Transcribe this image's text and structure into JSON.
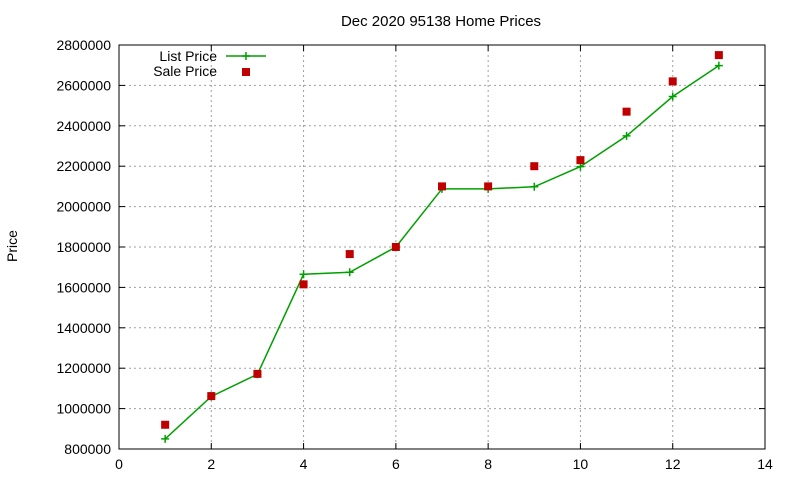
{
  "chart_data": {
    "type": "line",
    "title": "Dec 2020 95138 Home Prices",
    "xlabel": "",
    "ylabel": "Price",
    "xlim": [
      0,
      14
    ],
    "ylim": [
      800000,
      2800000
    ],
    "x_ticks": [
      0,
      2,
      4,
      6,
      8,
      10,
      12,
      14
    ],
    "y_ticks": [
      800000,
      1000000,
      1200000,
      1400000,
      1600000,
      1800000,
      2000000,
      2200000,
      2400000,
      2600000,
      2800000
    ],
    "grid": true,
    "legend_position": "top-left",
    "series": [
      {
        "name": "List Price",
        "style": "line-with-plus-markers",
        "color": "#00a000",
        "x": [
          1,
          2,
          3,
          4,
          5,
          6,
          7,
          8,
          9,
          10,
          11,
          12,
          13
        ],
        "y": [
          850000,
          1060000,
          1170000,
          1665000,
          1675000,
          1800000,
          2088000,
          2088000,
          2098000,
          2198000,
          2350000,
          2545000,
          2698000
        ]
      },
      {
        "name": "Sale Price",
        "style": "square-markers",
        "color": "#c00000",
        "x": [
          1,
          2,
          3,
          4,
          5,
          6,
          7,
          8,
          9,
          10,
          11,
          12,
          13
        ],
        "y": [
          920000,
          1062000,
          1172000,
          1615000,
          1765000,
          1800000,
          2100000,
          2100000,
          2200000,
          2230000,
          2470000,
          2620000,
          2750000
        ]
      }
    ]
  }
}
